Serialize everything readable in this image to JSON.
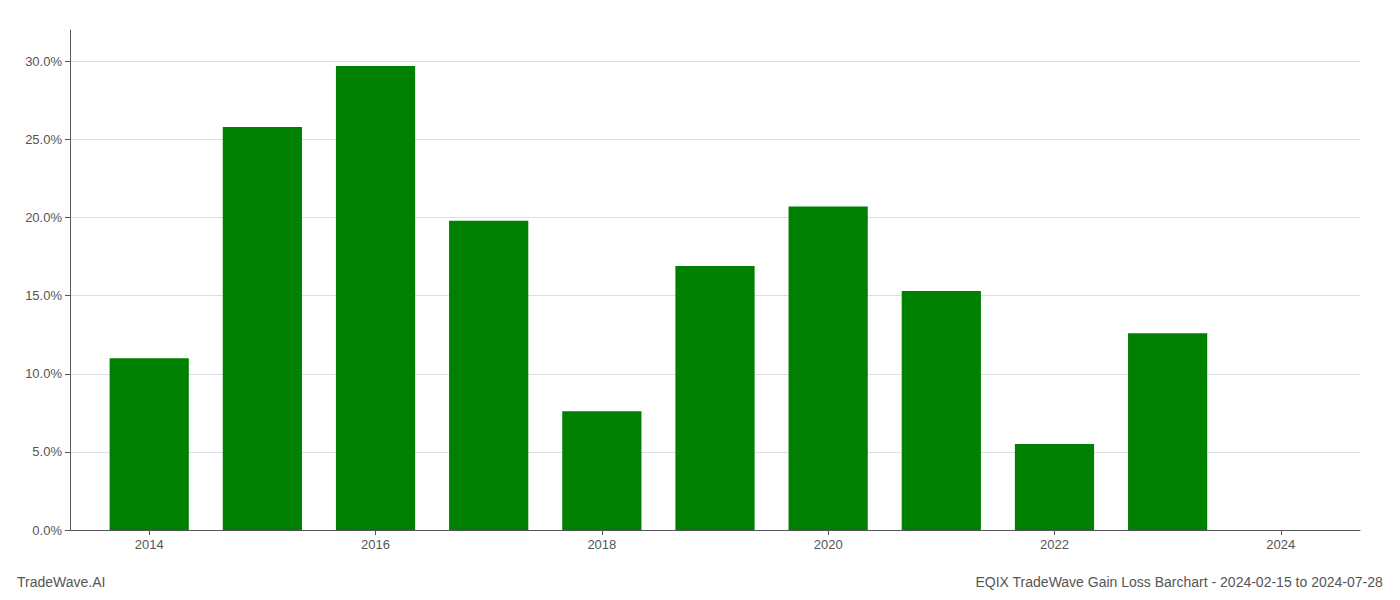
{
  "chart_data": {
    "type": "bar",
    "title": "EQIX TradeWave Gain Loss Barchart - 2024-02-15 to 2024-07-28",
    "annotations": [
      "TradeWave.AI"
    ],
    "x": [
      2014,
      2015,
      2016,
      2017,
      2018,
      2019,
      2020,
      2021,
      2022,
      2023
    ],
    "values": [
      0.11,
      0.258,
      0.297,
      0.198,
      0.076,
      0.169,
      0.207,
      0.153,
      0.055,
      0.126
    ],
    "color": "#008000",
    "xlim": [
      2013.3,
      2024.7
    ],
    "xticks": [
      2014,
      2016,
      2018,
      2020,
      2022,
      2024
    ],
    "ylim": [
      0.0,
      0.32
    ],
    "yticks": [
      {
        "value": 0.0,
        "label": "0.0%"
      },
      {
        "value": 0.05,
        "label": "5.0%"
      },
      {
        "value": 0.1,
        "label": "10.0%"
      },
      {
        "value": 0.15,
        "label": "15.0%"
      },
      {
        "value": 0.2,
        "label": "20.0%"
      },
      {
        "value": 0.25,
        "label": "25.0%"
      },
      {
        "value": 0.3,
        "label": "30.0%"
      }
    ],
    "grid": true
  }
}
